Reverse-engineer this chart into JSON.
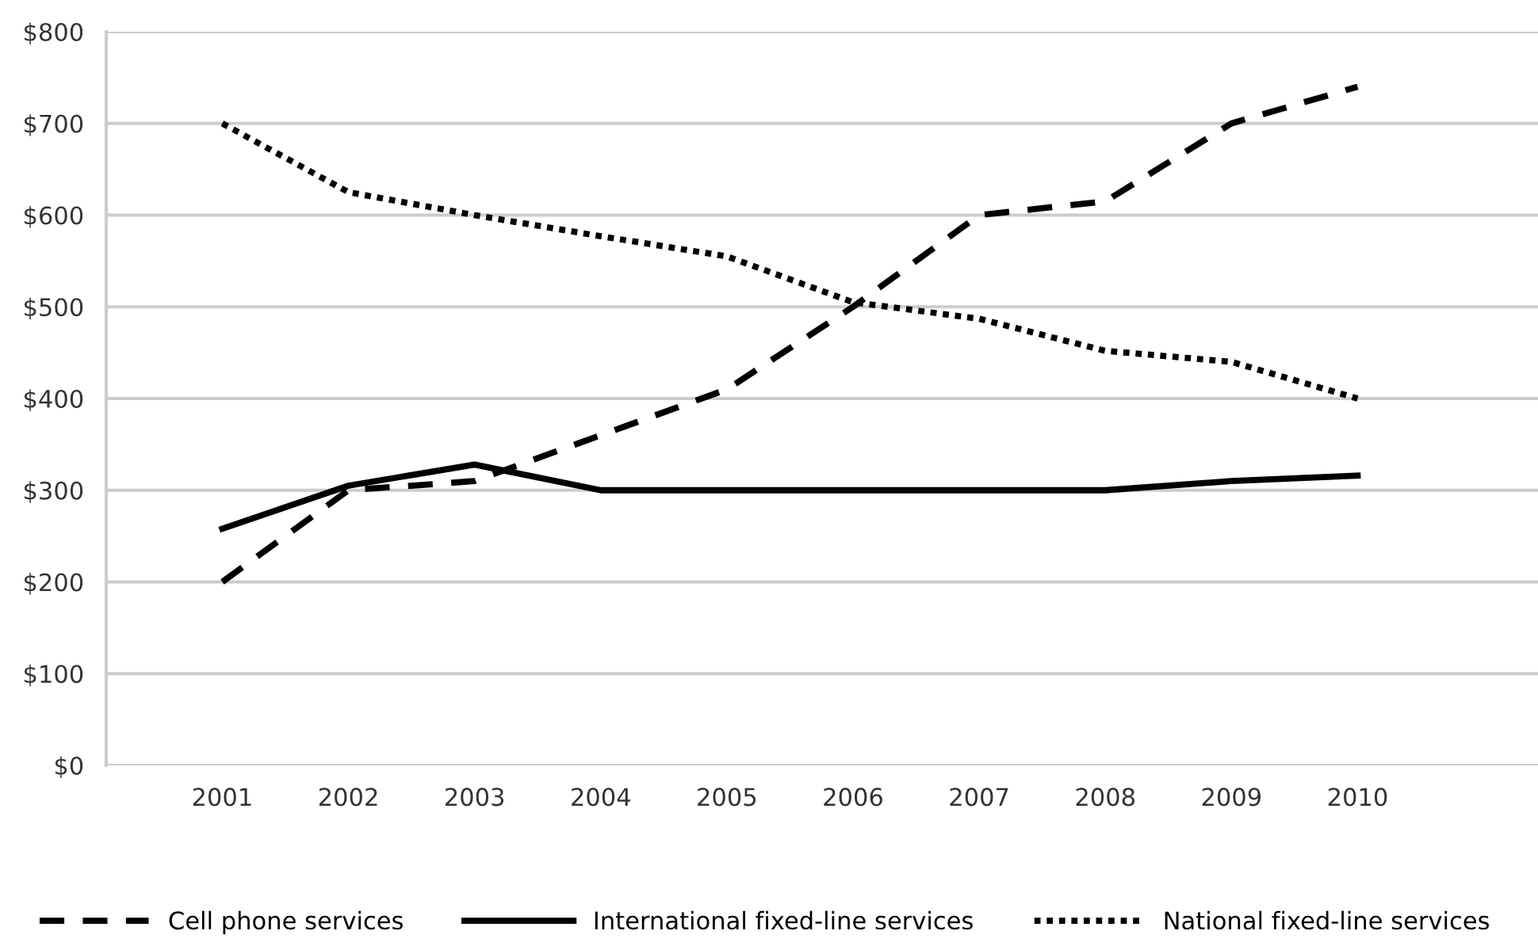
{
  "chart_data": {
    "type": "line",
    "categories": [
      "2001",
      "2002",
      "2003",
      "2004",
      "2005",
      "2006",
      "2007",
      "2008",
      "2009",
      "2010"
    ],
    "series": [
      {
        "name": "Cell phone services",
        "color": "#000000",
        "line_style": "dashed",
        "values": [
          200,
          300,
          310,
          360,
          410,
          500,
          600,
          615,
          700,
          740
        ]
      },
      {
        "name": "International fixed-line services",
        "color": "#000000",
        "line_style": "solid",
        "values": [
          258,
          305,
          328,
          300,
          300,
          300,
          300,
          300,
          310,
          316
        ]
      },
      {
        "name": "National fixed-line services",
        "color": "#000000",
        "line_style": "dotted",
        "values": [
          700,
          625,
          600,
          577,
          555,
          505,
          487,
          452,
          440,
          400
        ]
      }
    ],
    "ylim": [
      0,
      800
    ],
    "yticks": [
      {
        "value": 0,
        "label": "$0"
      },
      {
        "value": 100,
        "label": "$100"
      },
      {
        "value": 200,
        "label": "$200"
      },
      {
        "value": 300,
        "label": "$300"
      },
      {
        "value": 400,
        "label": "$400"
      },
      {
        "value": 500,
        "label": "$500"
      },
      {
        "value": 600,
        "label": "$600"
      },
      {
        "value": 700,
        "label": "$700"
      },
      {
        "value": 800,
        "label": "$800"
      }
    ],
    "grid": "y",
    "legend": "bottom"
  }
}
